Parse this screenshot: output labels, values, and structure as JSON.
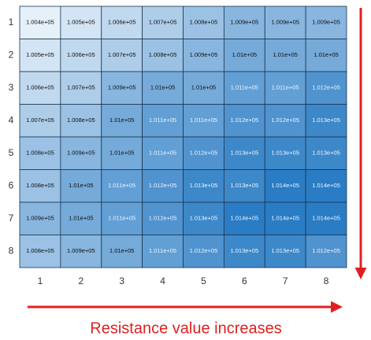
{
  "chart_data": {
    "type": "heatmap",
    "categories": [
      "1",
      "2",
      "3",
      "4",
      "5",
      "6",
      "7",
      "8"
    ],
    "y_categories": [
      "1",
      "2",
      "3",
      "4",
      "5",
      "6",
      "7",
      "8"
    ],
    "values": [
      [
        100400,
        100500,
        100600,
        100700,
        100800,
        100900,
        100900,
        100900
      ],
      [
        100500,
        100600,
        100700,
        100800,
        100900,
        101000,
        101000,
        101000
      ],
      [
        100600,
        100700,
        100900,
        101000,
        101000,
        101100,
        101100,
        101200
      ],
      [
        100700,
        100800,
        101000,
        101100,
        101100,
        101200,
        101200,
        101300
      ],
      [
        100800,
        100900,
        101000,
        101100,
        101200,
        101300,
        101300,
        101300
      ],
      [
        100800,
        101000,
        101100,
        101200,
        101300,
        101300,
        101400,
        101400
      ],
      [
        100900,
        101000,
        101100,
        101200,
        101300,
        101400,
        101400,
        101400
      ],
      [
        100800,
        100900,
        101000,
        101100,
        101200,
        101300,
        101300,
        101200
      ]
    ],
    "value_labels": [
      [
        "1.004e+05",
        "1.005e+05",
        "1.006e+05",
        "1.007e+05",
        "1.008e+05",
        "1.009e+05",
        "1.009e+05",
        "1.009e+05"
      ],
      [
        "1.005e+05",
        "1.006e+05",
        "1.007e+05",
        "1.008e+05",
        "1.009e+05",
        "1.01e+05",
        "1.01e+05",
        "1.01e+05"
      ],
      [
        "1.006e+05",
        "1.007e+05",
        "1.009e+05",
        "1.01e+05",
        "1.01e+05",
        "1.011e+05",
        "1.011e+05",
        "1.012e+05"
      ],
      [
        "1.007e+05",
        "1.008e+05",
        "1.01e+05",
        "1.011e+05",
        "1.011e+05",
        "1.012e+05",
        "1.012e+05",
        "1.013e+05"
      ],
      [
        "1.008e+05",
        "1.009e+05",
        "1.01e+05",
        "1.011e+05",
        "1.012e+05",
        "1.013e+05",
        "1.013e+05",
        "1.013e+05"
      ],
      [
        "1.008e+05",
        "1.01e+05",
        "1.011e+05",
        "1.012e+05",
        "1.013e+05",
        "1.013e+05",
        "1.014e+05",
        "1.014e+05"
      ],
      [
        "1.009e+05",
        "1.01e+05",
        "1.011e+05",
        "1.012e+05",
        "1.013e+05",
        "1.014e+05",
        "1.014e+05",
        "1.014e+05"
      ],
      [
        "1.008e+05",
        "1.009e+05",
        "1.01e+05",
        "1.011e+05",
        "1.012e+05",
        "1.013e+05",
        "1.013e+05",
        "1.012e+05"
      ]
    ],
    "colors": [
      "#e6f0f9",
      "#2a7cc4"
    ],
    "annotation": "Resistance value increases"
  }
}
